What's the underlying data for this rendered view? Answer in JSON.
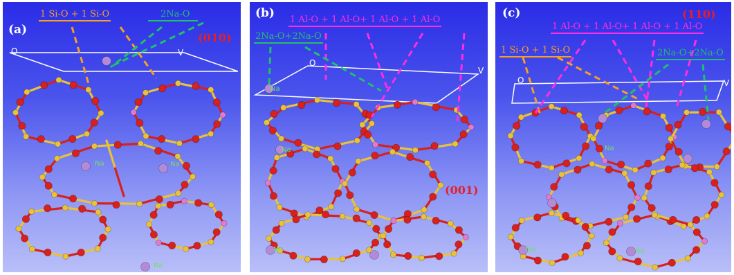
{
  "panels": [
    {
      "id": "a",
      "label": "(a)",
      "surface": "(010)",
      "orange_label": "1 Si-O + 1 Si-O",
      "green_label": "2Na-O",
      "axis_left": "O",
      "axis_right": "V",
      "na_label": "Na"
    },
    {
      "id": "b",
      "label": "(b)",
      "surface": "(001)",
      "magenta_label": "1 Al-O + 1 Al-O+ 1 Al-O + 1 Al-O",
      "green_label": "2Na-O+2Na-O",
      "axis_left": "O",
      "axis_right": "V",
      "na_label": "Na"
    },
    {
      "id": "c",
      "label": "(c)",
      "surface": "(110)",
      "magenta_label": "1 Al-O + 1 Al-O+ 1 Al-O + 1 Al-O",
      "orange_label": "1 Si-O + 1 Si-O",
      "green_label": "2Na-O+2Na-O",
      "axis_left": "O",
      "axis_right": "V",
      "na_label": "Na"
    }
  ],
  "colors": {
    "oxygen": "#d8201c",
    "silicon": "#e8c23a",
    "aluminium": "#e07ad0",
    "sodium": "#b28ad6",
    "orange_line": "#f6a020",
    "green_line": "#1ec26a",
    "magenta_line": "#ff2ee0"
  }
}
